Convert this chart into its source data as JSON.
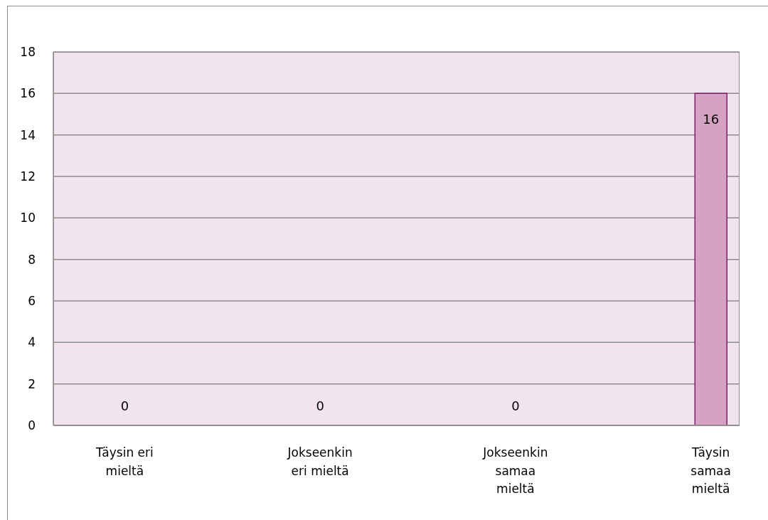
{
  "chart_data": {
    "type": "bar",
    "categories": [
      "Täysin eri mieltä",
      "Jokseenkin eri mieltä",
      "Jokseenkin samaa mieltä",
      "Täysin samaa mieltä"
    ],
    "values": [
      0,
      0,
      0,
      16
    ],
    "color": "#d4a3c4",
    "ylim": [
      0,
      18
    ],
    "yticks": [
      0,
      2,
      4,
      6,
      8,
      10,
      12,
      14,
      16,
      18
    ],
    "grid": "y",
    "data_labels": true
  }
}
